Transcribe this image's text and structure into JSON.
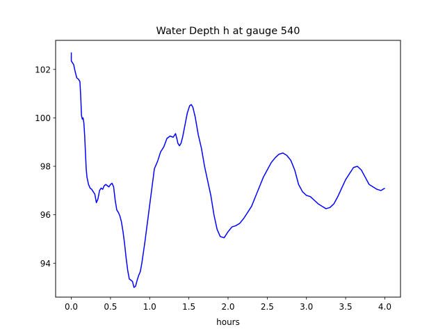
{
  "chart_data": {
    "type": "line",
    "title": "Water Depth h at gauge 540",
    "xlabel": "hours",
    "ylabel": "",
    "xlim": [
      -0.2,
      4.2
    ],
    "ylim": [
      92.6,
      103.2
    ],
    "xticks": [
      0.0,
      0.5,
      1.0,
      1.5,
      2.0,
      2.5,
      3.0,
      3.5,
      4.0
    ],
    "xtick_labels": [
      "0.0",
      "0.5",
      "1.0",
      "1.5",
      "2.0",
      "2.5",
      "3.0",
      "3.5",
      "4.0"
    ],
    "yticks": [
      94,
      96,
      98,
      100,
      102
    ],
    "ytick_labels": [
      "94",
      "96",
      "98",
      "100",
      "102"
    ],
    "grid": false,
    "series": [
      {
        "color": "#0000ff",
        "x": [
          0.0,
          0.0,
          0.01,
          0.03,
          0.05,
          0.07,
          0.09,
          0.11,
          0.12,
          0.13,
          0.14,
          0.15,
          0.16,
          0.17,
          0.18,
          0.19,
          0.2,
          0.22,
          0.24,
          0.26,
          0.28,
          0.3,
          0.32,
          0.34,
          0.36,
          0.38,
          0.4,
          0.42,
          0.44,
          0.46,
          0.48,
          0.5,
          0.52,
          0.54,
          0.56,
          0.58,
          0.6,
          0.62,
          0.64,
          0.66,
          0.68,
          0.7,
          0.72,
          0.74,
          0.76,
          0.78,
          0.8,
          0.82,
          0.84,
          0.86,
          0.88,
          0.9,
          0.94,
          0.98,
          1.02,
          1.06,
          1.1,
          1.14,
          1.18,
          1.22,
          1.26,
          1.3,
          1.33,
          1.35,
          1.36,
          1.38,
          1.4,
          1.42,
          1.45,
          1.48,
          1.51,
          1.53,
          1.55,
          1.58,
          1.62,
          1.66,
          1.7,
          1.74,
          1.78,
          1.82,
          1.86,
          1.9,
          1.95,
          2.0,
          2.05,
          2.1,
          2.15,
          2.2,
          2.25,
          2.3,
          2.35,
          2.4,
          2.45,
          2.5,
          2.55,
          2.6,
          2.65,
          2.7,
          2.75,
          2.8,
          2.85,
          2.9,
          2.95,
          3.0,
          3.05,
          3.1,
          3.15,
          3.2,
          3.25,
          3.3,
          3.35,
          3.4,
          3.45,
          3.5,
          3.55,
          3.6,
          3.65,
          3.7,
          3.75,
          3.8,
          3.85,
          3.9,
          3.95,
          4.0
        ],
        "y": [
          102.7,
          102.35,
          102.3,
          102.2,
          101.9,
          101.65,
          101.6,
          101.5,
          100.9,
          100.1,
          99.95,
          100.0,
          99.8,
          99.3,
          98.6,
          97.9,
          97.55,
          97.25,
          97.1,
          97.05,
          96.95,
          96.85,
          96.5,
          96.65,
          97.0,
          97.1,
          97.05,
          97.2,
          97.25,
          97.2,
          97.15,
          97.25,
          97.3,
          97.15,
          96.6,
          96.2,
          96.1,
          95.95,
          95.7,
          95.3,
          94.8,
          94.2,
          93.7,
          93.35,
          93.3,
          93.25,
          93.0,
          93.05,
          93.3,
          93.5,
          93.65,
          94.0,
          94.9,
          95.9,
          96.9,
          97.9,
          98.2,
          98.6,
          98.8,
          99.15,
          99.25,
          99.2,
          99.35,
          99.1,
          98.95,
          98.85,
          98.95,
          99.2,
          99.7,
          100.2,
          100.5,
          100.55,
          100.45,
          100.05,
          99.3,
          98.75,
          98.0,
          97.4,
          96.8,
          96.0,
          95.4,
          95.1,
          95.05,
          95.3,
          95.5,
          95.55,
          95.65,
          95.85,
          96.1,
          96.35,
          96.75,
          97.15,
          97.55,
          97.85,
          98.15,
          98.35,
          98.5,
          98.55,
          98.45,
          98.25,
          97.85,
          97.25,
          96.95,
          96.8,
          96.75,
          96.6,
          96.45,
          96.35,
          96.25,
          96.3,
          96.45,
          96.75,
          97.1,
          97.45,
          97.7,
          97.95,
          98.0,
          97.85,
          97.55,
          97.25,
          97.15,
          97.05,
          97.0,
          97.1
        ]
      }
    ]
  }
}
